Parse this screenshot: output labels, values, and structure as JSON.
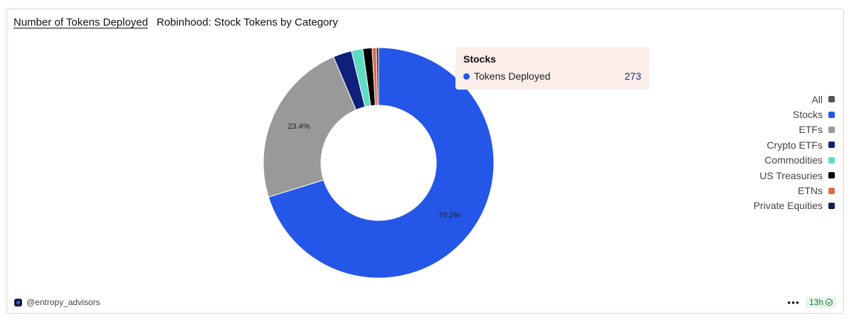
{
  "header": {
    "tab_title": "Number of Tokens Deployed",
    "chart_title": "Robinhood: Stock Tokens by Category"
  },
  "tooltip": {
    "title": "Stocks",
    "series": "Tokens Deployed",
    "value": "273",
    "color": "#2456e8"
  },
  "legend": {
    "items": [
      {
        "label": "All",
        "color": "#555555"
      },
      {
        "label": "Stocks",
        "color": "#2456e8"
      },
      {
        "label": "ETFs",
        "color": "#999999"
      },
      {
        "label": "Crypto ETFs",
        "color": "#0f1f7a"
      },
      {
        "label": "Commodities",
        "color": "#5fdcc4"
      },
      {
        "label": "US Treasuries",
        "color": "#000000"
      },
      {
        "label": "ETNs",
        "color": "#e26a4f"
      },
      {
        "label": "Private Equities",
        "color": "#0f2540"
      }
    ]
  },
  "footer": {
    "author": "@entropy_advisors",
    "more": "•••",
    "age": "13h"
  },
  "chart_data": {
    "type": "pie",
    "title": "Robinhood: Stock Tokens by Category",
    "series_name": "Tokens Deployed",
    "slices": [
      {
        "label": "Stocks",
        "percent": 70.2,
        "value": 273,
        "color": "#2456e8",
        "show_label": "70.2%"
      },
      {
        "label": "ETFs",
        "percent": 23.4,
        "color": "#999999",
        "show_label": "23.4%"
      },
      {
        "label": "Crypto ETFs",
        "percent": 2.6,
        "color": "#0f1f7a",
        "show_label": ""
      },
      {
        "label": "Commodities",
        "percent": 1.6,
        "color": "#5fdcc4",
        "show_label": ""
      },
      {
        "label": "US Treasuries",
        "percent": 1.3,
        "color": "#000000",
        "show_label": ""
      },
      {
        "label": "ETNs",
        "percent": 0.6,
        "color": "#e26a4f",
        "show_label": ""
      },
      {
        "label": "Private Equities",
        "percent": 0.3,
        "color": "#0f2540",
        "show_label": ""
      }
    ],
    "donut": true
  }
}
